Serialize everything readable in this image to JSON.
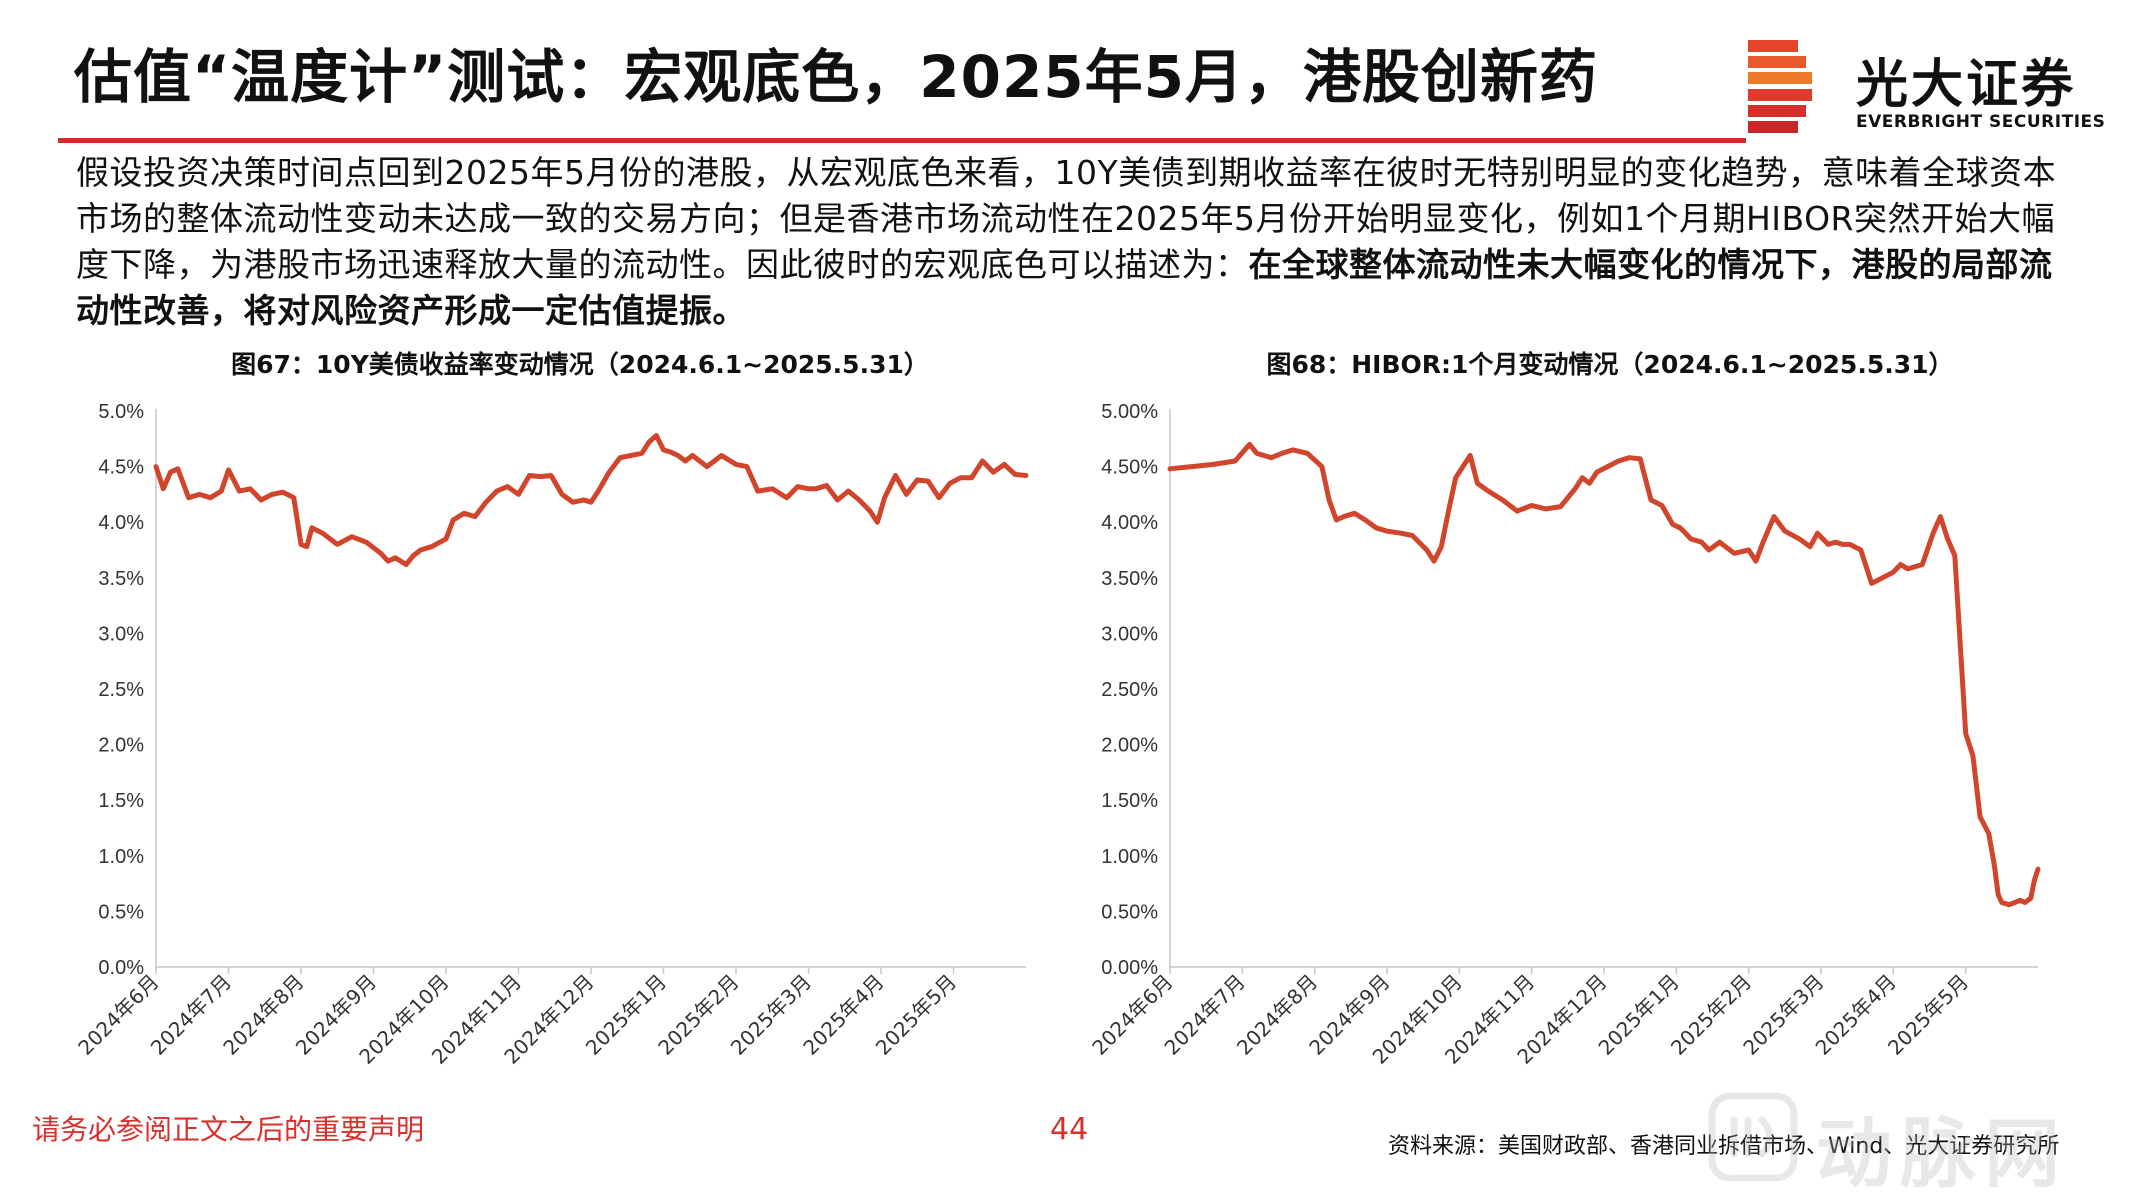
{
  "title": "估值“温度计”测试：宏观底色，2025年5月，港股创新药",
  "logo": {
    "cn": "光大证券",
    "en": "EVERBRIGHT SECURITIES"
  },
  "intro": {
    "normal": "假设投资决策时间点回到2025年5月份的港股，从宏观底色来看，10Y美债到期收益率在彼时无特别明显的变化趋势，意味着全球资本市场的整体流动性变动未达成一致的交易方向；但是香港市场流动性在2025年5月份开始明显变化，例如1个月期HIBOR突然开始大幅度下降，为港股市场迅速释放大量的流动性。因此彼时的宏观底色可以描述为：",
    "bold": "在全球整体流动性未大幅变化的情况下，港股的局部流动性改善，将对风险资产形成一定估值提振。"
  },
  "colors": {
    "accent": "#c8302d",
    "line": "#d0452b",
    "footer": "#d9302b"
  },
  "chart_data": [
    {
      "type": "line",
      "title": "图67：10Y美债收益率变动情况（2024.6.1~2025.5.31）",
      "xlabel": "",
      "ylabel": "",
      "ylim": [
        0,
        5
      ],
      "y_ticks": [
        "5.0%",
        "4.5%",
        "4.0%",
        "3.5%",
        "3.0%",
        "2.5%",
        "2.0%",
        "1.5%",
        "1.0%",
        "0.5%",
        "0.0%"
      ],
      "x_ticks": [
        "2024年6月",
        "2024年7月",
        "2024年8月",
        "2024年9月",
        "2024年10月",
        "2024年11月",
        "2024年12月",
        "2025年1月",
        "2025年2月",
        "2025年3月",
        "2025年4月",
        "2025年5月"
      ],
      "x_range": [
        0,
        12
      ],
      "series": [
        {
          "name": "10Y美债收益率",
          "x": [
            0,
            0.1,
            0.2,
            0.3,
            0.45,
            0.6,
            0.75,
            0.9,
            1.0,
            1.15,
            1.3,
            1.45,
            1.6,
            1.75,
            1.9,
            2.0,
            2.08,
            2.15,
            2.3,
            2.5,
            2.7,
            2.9,
            3.1,
            3.2,
            3.3,
            3.45,
            3.55,
            3.65,
            3.8,
            4.0,
            4.1,
            4.25,
            4.4,
            4.55,
            4.7,
            4.85,
            5.0,
            5.15,
            5.3,
            5.45,
            5.6,
            5.75,
            5.9,
            6.0,
            6.1,
            6.25,
            6.4,
            6.55,
            6.7,
            6.8,
            6.9,
            7.0,
            7.1,
            7.2,
            7.3,
            7.4,
            7.6,
            7.8,
            8.0,
            8.15,
            8.3,
            8.5,
            8.7,
            8.85,
            9.0,
            9.1,
            9.25,
            9.4,
            9.55,
            9.7,
            9.85,
            9.95,
            10.05,
            10.2,
            10.35,
            10.5,
            10.65,
            10.8,
            10.95,
            11.1,
            11.25,
            11.4,
            11.55,
            11.7,
            11.85,
            12.0
          ],
          "values": [
            4.5,
            4.3,
            4.45,
            4.48,
            4.22,
            4.25,
            4.22,
            4.28,
            4.47,
            4.28,
            4.3,
            4.2,
            4.25,
            4.27,
            4.22,
            3.8,
            3.78,
            3.95,
            3.9,
            3.8,
            3.87,
            3.82,
            3.72,
            3.65,
            3.68,
            3.62,
            3.7,
            3.75,
            3.78,
            3.85,
            4.02,
            4.08,
            4.05,
            4.18,
            4.28,
            4.32,
            4.25,
            4.42,
            4.41,
            4.42,
            4.25,
            4.18,
            4.2,
            4.18,
            4.28,
            4.45,
            4.58,
            4.6,
            4.62,
            4.72,
            4.78,
            4.65,
            4.63,
            4.6,
            4.55,
            4.6,
            4.5,
            4.6,
            4.52,
            4.5,
            4.28,
            4.3,
            4.22,
            4.32,
            4.3,
            4.3,
            4.33,
            4.2,
            4.28,
            4.2,
            4.1,
            4.0,
            4.22,
            4.42,
            4.25,
            4.38,
            4.37,
            4.22,
            4.35,
            4.4,
            4.4,
            4.55,
            4.45,
            4.52,
            4.43,
            4.42
          ]
        }
      ]
    },
    {
      "type": "line",
      "title": "图68：HIBOR:1个月变动情况（2024.6.1~2025.5.31）",
      "xlabel": "",
      "ylabel": "",
      "ylim": [
        0,
        5
      ],
      "y_ticks": [
        "5.00%",
        "4.50%",
        "4.00%",
        "3.50%",
        "3.00%",
        "2.50%",
        "2.00%",
        "1.50%",
        "1.00%",
        "0.50%",
        "0.00%"
      ],
      "x_ticks": [
        "2024年6月",
        "2024年7月",
        "2024年8月",
        "2024年9月",
        "2024年10月",
        "2024年11月",
        "2024年12月",
        "2025年1月",
        "2025年2月",
        "2025年3月",
        "2025年4月",
        "2025年5月"
      ],
      "x_range": [
        0,
        12
      ],
      "series": [
        {
          "name": "HIBOR:1个月",
          "x": [
            0,
            0.3,
            0.6,
            0.9,
            1.1,
            1.2,
            1.3,
            1.4,
            1.55,
            1.7,
            1.9,
            2.1,
            2.2,
            2.3,
            2.4,
            2.55,
            2.7,
            2.85,
            3.0,
            3.2,
            3.35,
            3.55,
            3.65,
            3.75,
            3.85,
            3.95,
            4.05,
            4.15,
            4.25,
            4.4,
            4.6,
            4.8,
            5.0,
            5.2,
            5.4,
            5.6,
            5.7,
            5.8,
            5.9,
            6.05,
            6.2,
            6.35,
            6.5,
            6.65,
            6.8,
            6.95,
            7.05,
            7.1,
            7.2,
            7.35,
            7.45,
            7.6,
            7.8,
            8.0,
            8.1,
            8.2,
            8.35,
            8.5,
            8.7,
            8.85,
            8.95,
            9.1,
            9.2,
            9.3,
            9.4,
            9.55,
            9.7,
            9.85,
            10.0,
            10.1,
            10.2,
            10.4,
            10.55,
            10.65,
            10.75,
            10.85,
            11.0,
            11.1,
            11.2,
            11.32,
            11.4,
            11.45,
            11.5,
            11.6,
            11.68,
            11.75,
            11.82,
            11.9,
            11.95,
            12.0
          ],
          "values": [
            4.48,
            4.5,
            4.52,
            4.55,
            4.7,
            4.62,
            4.6,
            4.58,
            4.62,
            4.65,
            4.62,
            4.5,
            4.2,
            4.02,
            4.05,
            4.08,
            4.02,
            3.95,
            3.92,
            3.9,
            3.88,
            3.75,
            3.65,
            3.78,
            4.1,
            4.4,
            4.5,
            4.6,
            4.35,
            4.28,
            4.2,
            4.1,
            4.15,
            4.12,
            4.14,
            4.3,
            4.4,
            4.35,
            4.45,
            4.5,
            4.55,
            4.58,
            4.57,
            4.2,
            4.15,
            3.98,
            3.95,
            3.92,
            3.85,
            3.82,
            3.75,
            3.82,
            3.72,
            3.75,
            3.65,
            3.82,
            4.05,
            3.92,
            3.85,
            3.78,
            3.9,
            3.8,
            3.82,
            3.8,
            3.8,
            3.75,
            3.45,
            3.5,
            3.55,
            3.62,
            3.58,
            3.62,
            3.9,
            4.05,
            3.85,
            3.7,
            2.1,
            1.9,
            1.35,
            1.2,
            0.9,
            0.65,
            0.58,
            0.56,
            0.58,
            0.6,
            0.58,
            0.62,
            0.78,
            0.88
          ]
        }
      ]
    }
  ],
  "footer": {
    "note": "请务必参阅正文之后的重要声明",
    "page": "44",
    "source": "资料来源：美国财政部、香港同业拆借市场、Wind、光大证券研究所"
  },
  "watermark": {
    "text": "动脉网"
  }
}
